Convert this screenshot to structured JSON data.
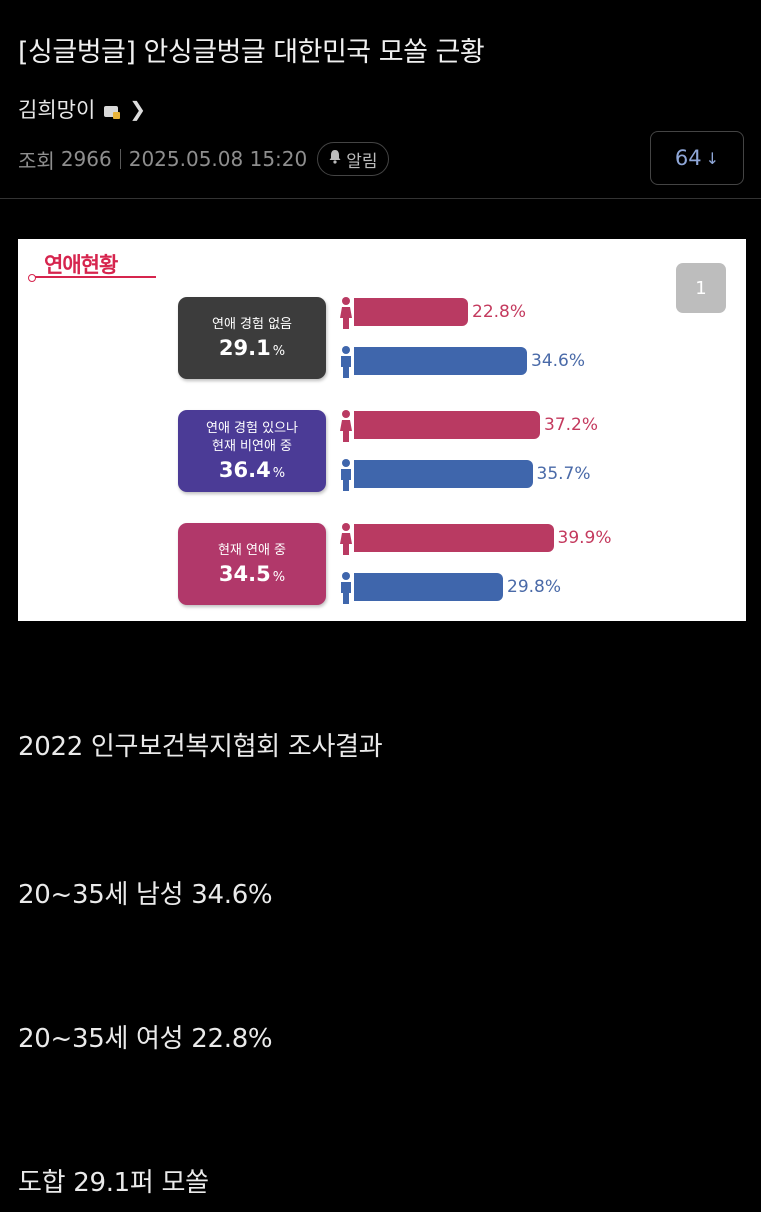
{
  "post": {
    "title": "[싱글벙글] 안싱글벙글 대한민국 모쏠 근황",
    "author": "김희망이",
    "views_label": "조회",
    "views": "2966",
    "date": "2025.05.08 15:20",
    "alarm_label": "알림",
    "comment_count": "64"
  },
  "figure": {
    "page_badge": "1",
    "chart_data": {
      "type": "bar",
      "title": "연애현황",
      "categories": [
        {
          "label": "연애 경험 없음",
          "total": "29.1",
          "unit": "%",
          "color": "#3c3c3c"
        },
        {
          "label": "연애 경험 있으나\n현재 비연애 중",
          "total": "36.4",
          "unit": "%",
          "color": "#4b3b96"
        },
        {
          "label": "현재 연애 중",
          "total": "34.5",
          "unit": "%",
          "color": "#b1386a"
        }
      ],
      "series": [
        {
          "gender": "female",
          "color": "#b93a62",
          "values": [
            22.8,
            37.2,
            39.9
          ],
          "labels": [
            "22.8%",
            "37.2%",
            "39.9%"
          ]
        },
        {
          "gender": "male",
          "color": "#3f66ac",
          "values": [
            34.6,
            35.7,
            29.8
          ],
          "labels": [
            "34.6%",
            "35.7%",
            "29.8%"
          ]
        }
      ]
    }
  },
  "body": {
    "lines": [
      "2022 인구보건복지협회 조사결과",
      "20~35세 남성 34.6%",
      "20~35세 여성 22.8%",
      "도합 29.1퍼 모쏠"
    ]
  }
}
